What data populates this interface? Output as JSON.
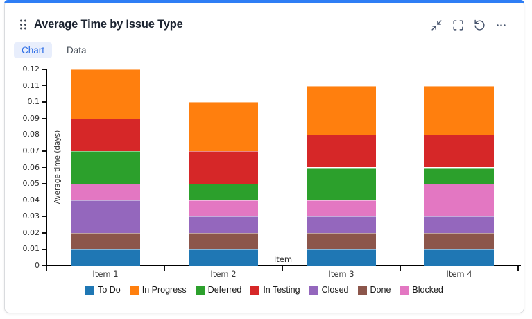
{
  "widget": {
    "title": "Average Time by Issue Type",
    "accent_color": "#2e7ef5",
    "tabs": [
      {
        "label": "Chart",
        "active": true
      },
      {
        "label": "Data",
        "active": false
      }
    ],
    "toolbar_icons": [
      "collapse-icon",
      "fullscreen-icon",
      "refresh-icon",
      "more-options-icon"
    ]
  },
  "chart_data": {
    "type": "bar",
    "stacked": true,
    "title": "Average Time by Issue Type",
    "categories": [
      "Item 1",
      "Item 2",
      "Item 3",
      "Item 4"
    ],
    "series": [
      {
        "name": "To Do",
        "color": "#1f77b4",
        "values": [
          0.01,
          0.01,
          0.01,
          0.01
        ]
      },
      {
        "name": "In Progress",
        "color": "#ff7f0e",
        "values": [
          0.03,
          0.03,
          0.03,
          0.03
        ]
      },
      {
        "name": "Deferred",
        "color": "#2ca02c",
        "values": [
          0.02,
          0.01,
          0.02,
          0.01
        ]
      },
      {
        "name": "In Testing",
        "color": "#d62728",
        "values": [
          0.02,
          0.02,
          0.02,
          0.02
        ]
      },
      {
        "name": "Closed",
        "color": "#9467bd",
        "values": [
          0.02,
          0.01,
          0.01,
          0.01
        ]
      },
      {
        "name": "Done",
        "color": "#8c564b",
        "values": [
          0.01,
          0.01,
          0.01,
          0.01
        ]
      },
      {
        "name": "Blocked",
        "color": "#e377c2",
        "values": [
          0.01,
          0.01,
          0.01,
          0.02
        ]
      }
    ],
    "stack_order_bottom_to_top": [
      "To Do",
      "Done",
      "Closed",
      "Blocked",
      "Deferred",
      "In Testing",
      "In Progress"
    ],
    "totals": [
      0.12,
      0.1,
      0.11,
      0.11
    ],
    "xlabel": "Item",
    "ylabel": "Average time (days)",
    "ylim": [
      0,
      0.12
    ],
    "ytick_step": 0.01,
    "grid": false,
    "legend_position": "bottom"
  }
}
